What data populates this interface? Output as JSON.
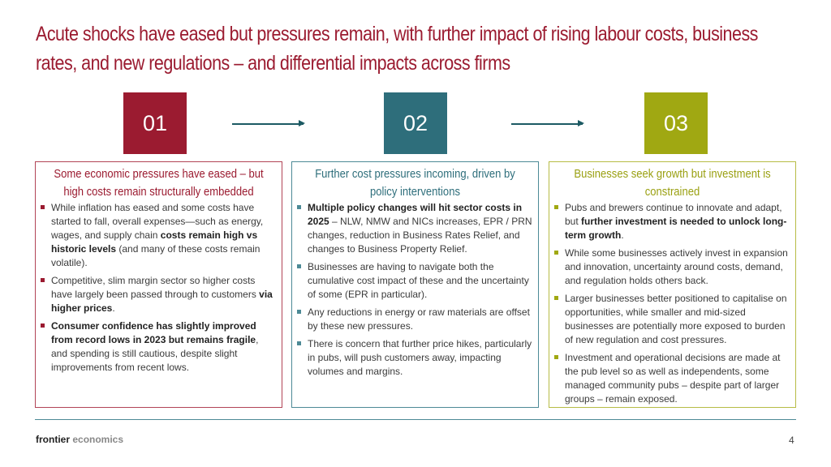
{
  "title": "Acute shocks have eased but pressures remain, with further impact of rising labour costs, business rates, and new regulations – and differential impacts across firms",
  "steps": [
    {
      "label": "01",
      "color": "#9b1b30"
    },
    {
      "label": "02",
      "color": "#2e6e7b"
    },
    {
      "label": "03",
      "color": "#a0a812"
    }
  ],
  "panels": [
    {
      "heading": "Some economic pressures have eased – but high costs remain structurally embedded",
      "bullets": [
        [
          {
            "t": "While inflation has eased and some costs have started to fall, overall expenses—such as energy, wages, and supply chain "
          },
          {
            "t": "costs remain high vs historic levels",
            "b": true
          },
          {
            "t": " (and many of these costs remain volatile)."
          }
        ],
        [
          {
            "t": "Competitive, slim margin sector so higher costs have largely been passed through to customers "
          },
          {
            "t": "via higher prices",
            "b": true
          },
          {
            "t": "."
          }
        ],
        [
          {
            "t": "Consumer confidence has slightly improved from record lows in 2023 but remains fragile",
            "b": true
          },
          {
            "t": ", and spending is still cautious, despite slight improvements from recent lows."
          }
        ]
      ]
    },
    {
      "heading": "Further cost pressures incoming, driven by policy interventions",
      "bullets": [
        [
          {
            "t": "Multiple policy changes will hit sector costs in 2025",
            "b": true
          },
          {
            "t": " – NLW, NMW and NICs increases, EPR / PRN changes, reduction in Business Rates Relief, and changes to Business Property Relief."
          }
        ],
        [
          {
            "t": "Businesses are having to navigate both the cumulative cost impact of these and the uncertainty of some (EPR in particular)."
          }
        ],
        [
          {
            "t": "Any reductions in energy or raw materials are offset by these new pressures."
          }
        ],
        [
          {
            "t": "There is concern that further price hikes, particularly in pubs, will push customers away, impacting volumes and margins."
          }
        ]
      ]
    },
    {
      "heading": "Businesses seek growth but investment is constrained",
      "bullets": [
        [
          {
            "t": "Pubs and brewers continue to innovate and adapt, but "
          },
          {
            "t": "further investment is needed to unlock long-term growth",
            "b": true
          },
          {
            "t": "."
          }
        ],
        [
          {
            "t": "While some businesses actively invest in expansion and innovation, uncertainty around costs, demand, and regulation holds others back."
          }
        ],
        [
          {
            "t": "Larger businesses better positioned to capitalise on opportunities, while smaller and mid-sized businesses are potentially more exposed to burden of new regulation and cost pressures."
          }
        ],
        [
          {
            "t": "Investment and operational decisions are made at the pub level so as well as independents, some managed community pubs – despite part of larger groups – remain exposed."
          }
        ]
      ]
    }
  ],
  "footer": {
    "brand_bold": "frontier",
    "brand_light": "economics",
    "page": "4"
  }
}
